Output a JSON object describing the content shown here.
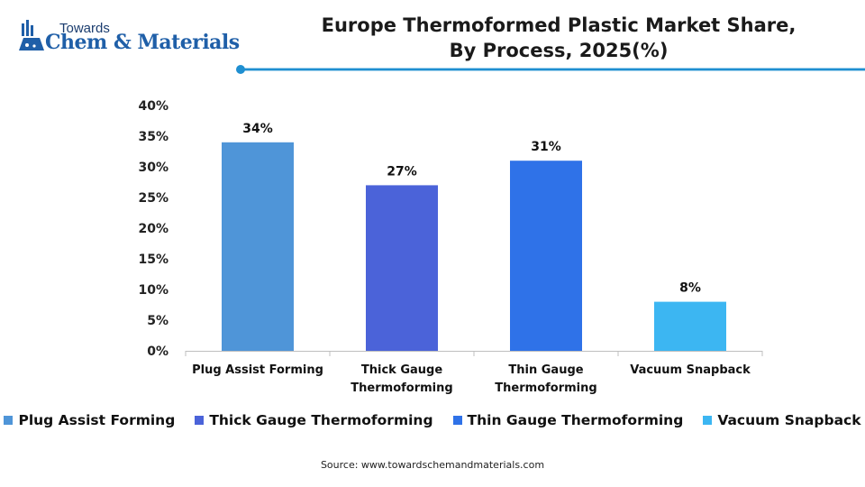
{
  "brand": {
    "line1": "Towards",
    "line2": "Chem & Materials"
  },
  "title_line1": "Europe Thermoformed Plastic Market Share,",
  "title_line2": "By Process, 2025(%)",
  "source": "Source: www.towardschemandmaterials.com",
  "accent_color": "#1f8fd1",
  "chart_data": {
    "type": "bar",
    "title": "Europe Thermoformed Plastic Market Share, By Process, 2025(%)",
    "categories": [
      "Plug Assist Forming",
      "Thick Gauge Thermoforming",
      "Thin Gauge Thermoforming",
      "Vacuum Snapback"
    ],
    "category_lines": [
      [
        "Plug Assist Forming"
      ],
      [
        "Thick Gauge",
        "Thermoforming"
      ],
      [
        "Thin Gauge",
        "Thermoforming"
      ],
      [
        "Vacuum Snapback"
      ]
    ],
    "values": [
      34,
      27,
      31,
      8
    ],
    "value_labels": [
      "34%",
      "27%",
      "31%",
      "8%"
    ],
    "colors": [
      "#4f95d8",
      "#4b63d9",
      "#2f72e8",
      "#3cb6f2"
    ],
    "yticks": [
      "0%",
      "5%",
      "10%",
      "15%",
      "20%",
      "25%",
      "30%",
      "35%",
      "40%"
    ],
    "ylim": [
      0,
      40
    ],
    "grid": false,
    "legend_position": "bottom",
    "legend": [
      "Plug Assist Forming",
      "Thick Gauge Thermoforming",
      "Thin Gauge Thermoforming",
      "Vacuum Snapback"
    ]
  }
}
